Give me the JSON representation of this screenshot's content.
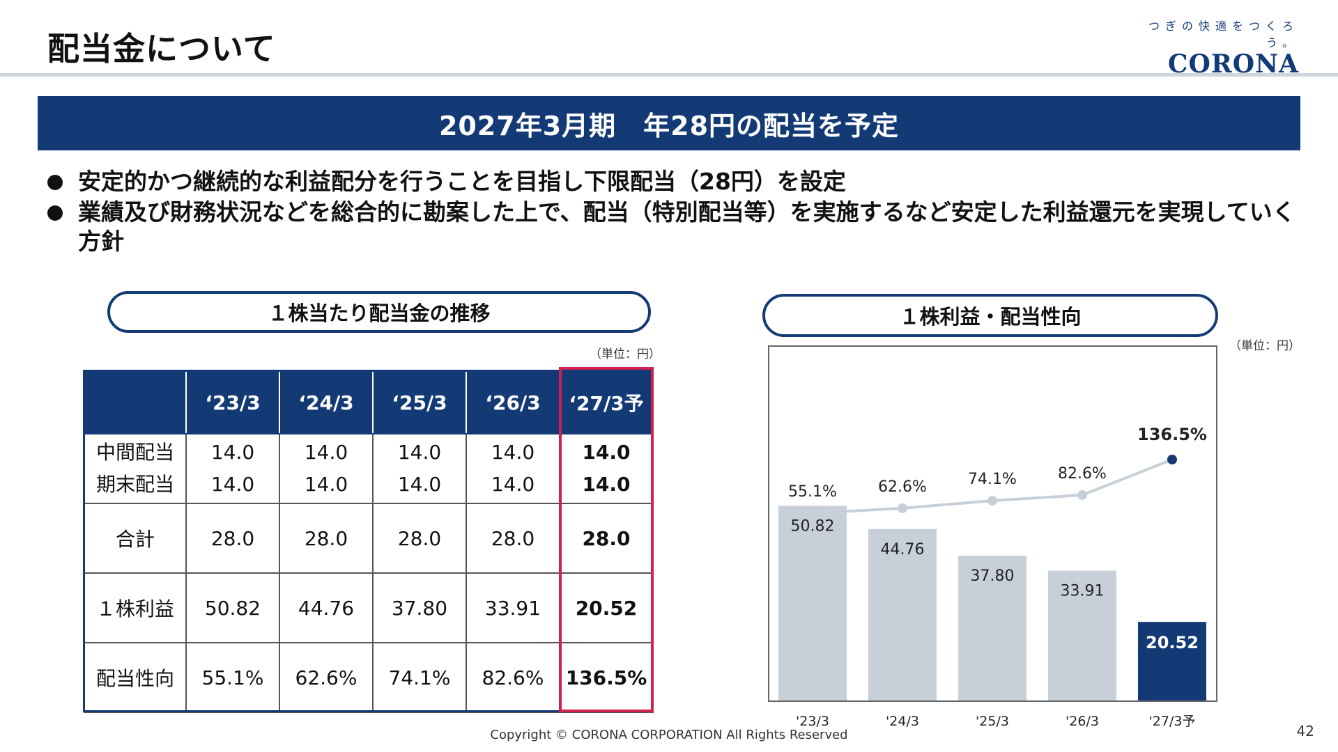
{
  "header": {
    "title": "配当金について",
    "logo_tagline": "つぎの快適をつくろう。",
    "logo_word": "CORONA"
  },
  "banner": "2027年3月期　年28円の配当を予定",
  "bullets": [
    "安定的かつ継続的な利益配分を行うことを目指し下限配当（28円）を設定",
    "業績及び財務状況などを総合的に勘案した上で、配当（特別配当等）を実施するなど安定した利益還元を実現していく方針"
  ],
  "table_section": {
    "title": "１株当たり配当金の推移",
    "unit": "（単位：円）",
    "columns": [
      "‘23/3",
      "‘24/3",
      "‘25/3",
      "‘26/3",
      "‘27/3予"
    ],
    "rows": {
      "interim_label": "中間配当",
      "yearend_label": "期末配当",
      "interim": [
        "14.0",
        "14.0",
        "14.0",
        "14.0",
        "14.0"
      ],
      "yearend": [
        "14.0",
        "14.0",
        "14.0",
        "14.0",
        "14.0"
      ],
      "total_label": "合計",
      "total": [
        "28.0",
        "28.0",
        "28.0",
        "28.0",
        "28.0"
      ],
      "eps_label": "１株利益",
      "eps": [
        "50.82",
        "44.76",
        "37.80",
        "33.91",
        "20.52"
      ],
      "payout_label": "配当性向",
      "payout": [
        "55.1%",
        "62.6%",
        "74.1%",
        "82.6%",
        "136.5%"
      ]
    }
  },
  "chart_section": {
    "title": "１株利益・配当性向",
    "unit": "（単位：円）"
  },
  "chart_data": {
    "type": "bar",
    "categories": [
      "'23/3",
      "'24/3",
      "'25/3",
      "'26/3",
      "'27/3予"
    ],
    "series": [
      {
        "type": "bar",
        "values": [
          50.82,
          44.76,
          37.8,
          33.91,
          20.52
        ],
        "labels": [
          "50.82",
          "44.76",
          "37.80",
          "33.91",
          "20.52"
        ]
      },
      {
        "type": "line",
        "values": [
          55.1,
          62.6,
          74.1,
          82.6,
          136.5
        ],
        "labels": [
          "55.1%",
          "62.6%",
          "74.1%",
          "82.6%",
          "136.5%"
        ]
      }
    ],
    "colors": {
      "bar": "#c7d0d8",
      "bar_highlight": "#143a76",
      "line": "#c7d0d8",
      "line_highlight": "#143a76"
    },
    "grid": false
  },
  "footer": {
    "copyright": "Copyright © CORONA CORPORATION All Rights Reserved",
    "page_number": "42"
  }
}
